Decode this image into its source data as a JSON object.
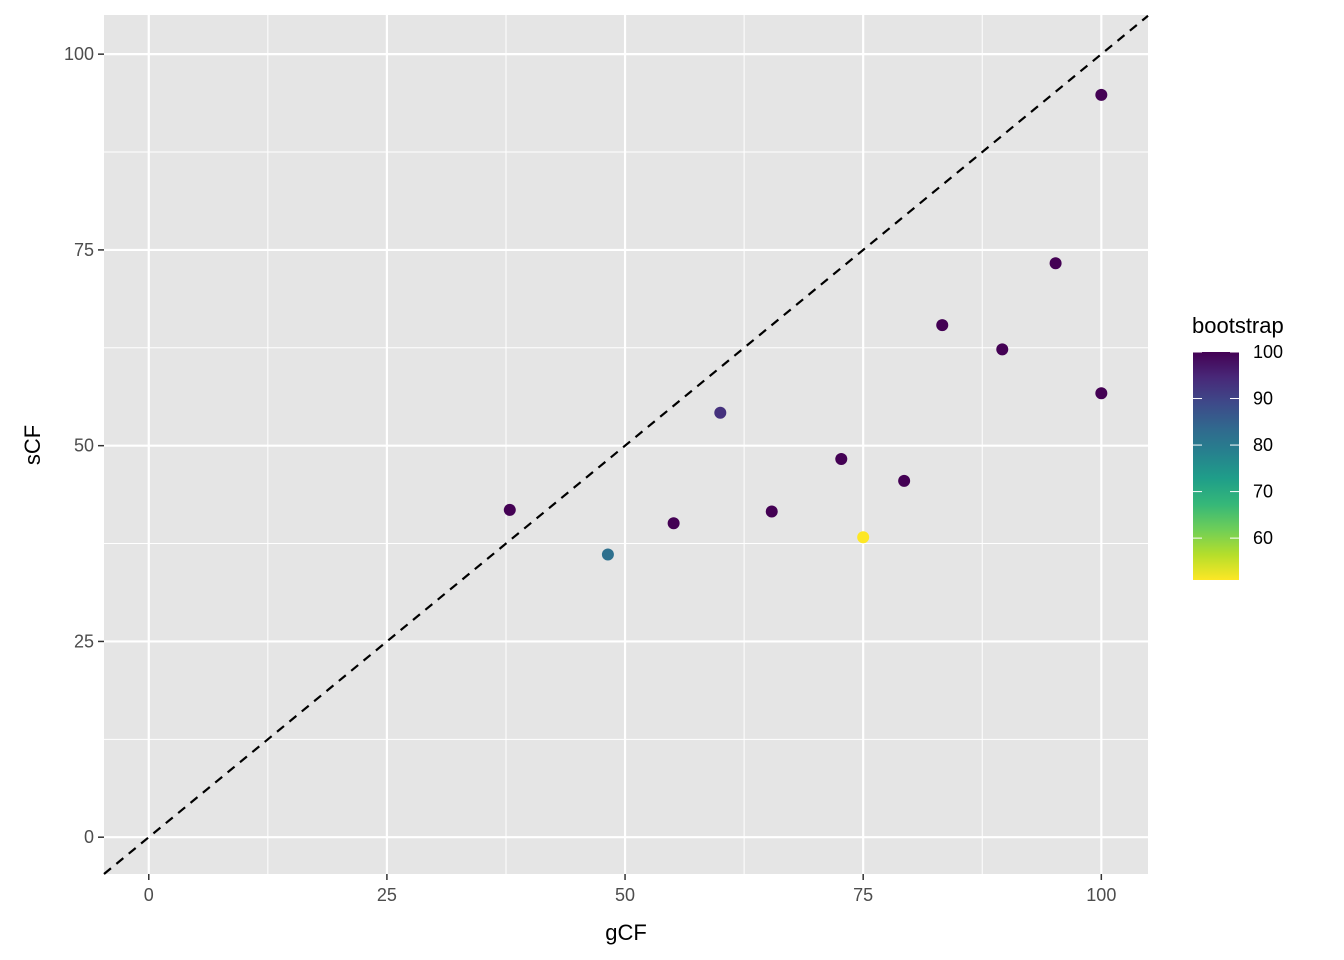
{
  "chart_data": {
    "type": "scatter",
    "xlabel": "gCF",
    "ylabel": "sCF",
    "xlim": [
      -4.7,
      104.9
    ],
    "ylim": [
      -4.7,
      105
    ],
    "xticks": [
      0,
      25,
      50,
      75,
      100
    ],
    "yticks": [
      0,
      25,
      50,
      75,
      100
    ],
    "grid": true,
    "reference_line": {
      "type": "y=x",
      "style": "dashed",
      "color": "#000000"
    },
    "legend": {
      "title": "bootstrap",
      "placement": "right",
      "type": "colorbar",
      "palette": "viridis",
      "range": [
        51,
        100
      ],
      "ticks": [
        60,
        70,
        80,
        90,
        100
      ]
    },
    "points": [
      {
        "x": 37.9,
        "y": 41.8,
        "bootstrap": 100
      },
      {
        "x": 48.2,
        "y": 36.1,
        "bootstrap": 82
      },
      {
        "x": 55.1,
        "y": 40.1,
        "bootstrap": 100
      },
      {
        "x": 60.0,
        "y": 54.2,
        "bootstrap": 93
      },
      {
        "x": 65.4,
        "y": 41.6,
        "bootstrap": 100
      },
      {
        "x": 72.7,
        "y": 48.3,
        "bootstrap": 100
      },
      {
        "x": 75.0,
        "y": 38.3,
        "bootstrap": 51
      },
      {
        "x": 79.3,
        "y": 45.5,
        "bootstrap": 100
      },
      {
        "x": 83.3,
        "y": 65.4,
        "bootstrap": 100
      },
      {
        "x": 89.6,
        "y": 62.3,
        "bootstrap": 100
      },
      {
        "x": 95.2,
        "y": 73.3,
        "bootstrap": 100
      },
      {
        "x": 100,
        "y": 56.7,
        "bootstrap": 100
      },
      {
        "x": 100,
        "y": 94.8,
        "bootstrap": 100
      }
    ],
    "colors": {
      "panel": "#e5e5e5",
      "grid": "#ffffff"
    }
  }
}
